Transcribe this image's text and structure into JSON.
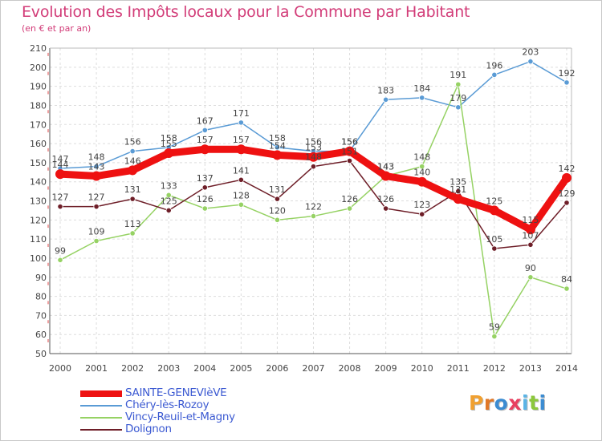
{
  "title": "Evolution des Impôts locaux pour la Commune par Habitant",
  "subtitle": "(en € et par an)",
  "logo": {
    "text": "Proxiti",
    "letters": [
      {
        "ch": "P",
        "color": "#f0a030"
      },
      {
        "ch": "r",
        "color": "#e07828"
      },
      {
        "ch": "o",
        "color": "#3c8cd2"
      },
      {
        "ch": "x",
        "color": "#e84060"
      },
      {
        "ch": "i",
        "color": "#5ab4e6"
      },
      {
        "ch": "t",
        "color": "#8cc83c"
      },
      {
        "ch": "i",
        "color": "#3c8cd2"
      }
    ]
  },
  "chart_data": {
    "type": "line",
    "title": "Evolution des Impôts locaux pour la Commune par Habitant",
    "subtitle": "(en € et par an)",
    "xlabel": "",
    "ylabel": "",
    "ylim": [
      50,
      210
    ],
    "yticks": [
      50,
      60,
      70,
      80,
      90,
      100,
      110,
      120,
      130,
      140,
      150,
      160,
      170,
      180,
      190,
      200,
      210
    ],
    "grid": true,
    "legend_position": "bottom-left",
    "categories": [
      "2000",
      "2001",
      "2002",
      "2003",
      "2004",
      "2005",
      "2006",
      "2007",
      "2008",
      "2009",
      "2010",
      "2011",
      "2012",
      "2013",
      "2014"
    ],
    "series": [
      {
        "name": "Chéry-lès-Rozoy",
        "color": "#5a9bd5",
        "values": [
          147,
          148,
          156,
          158,
          167,
          171,
          158,
          156,
          156,
          183,
          184,
          179,
          196,
          203,
          192
        ]
      },
      {
        "name": "Vincy-Reuil-et-Magny",
        "color": "#96d264",
        "values": [
          99,
          109,
          113,
          133,
          126,
          128,
          120,
          122,
          126,
          143,
          148,
          191,
          59,
          90,
          84
        ]
      },
      {
        "name": "Dolignon",
        "color": "#6e1e28",
        "values": [
          127,
          127,
          131,
          125,
          137,
          141,
          131,
          148,
          151,
          126,
          123,
          135,
          105,
          107,
          129
        ]
      },
      {
        "name": "SAINTE-GENEVIèVE",
        "color": "#ee1111",
        "values": [
          144,
          143,
          146,
          155,
          157,
          157,
          154,
          153,
          156,
          143,
          140,
          131,
          125,
          115,
          142
        ]
      }
    ]
  }
}
